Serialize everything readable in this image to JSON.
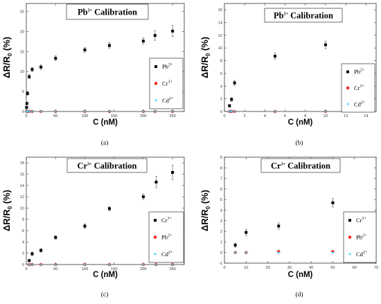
{
  "chart_data": [
    {
      "type": "scatter",
      "title": "Pb2+ Calibration",
      "title_base": "Pb",
      "title_sup": "2+",
      "title_rest": " Calibration",
      "xlabel": "C (nM)",
      "ylabel": "ΔR/R0 (%)",
      "ylabel_base": "ΔR/R",
      "ylabel_sub": "0",
      "ylabel_rest": " (%)",
      "caption": "(a)",
      "xlim": [
        0,
        270
      ],
      "ylim": [
        0,
        27
      ],
      "xticks": [
        0,
        50,
        100,
        150,
        200,
        250
      ],
      "yticks": [
        0,
        5,
        10,
        15,
        20,
        25
      ],
      "grid": false,
      "legend_placement": "right",
      "series": [
        {
          "name": "Pb2+",
          "base": "Pb",
          "sup": "2+",
          "color": "#000000",
          "marker": "square",
          "x": [
            0.5,
            1,
            2,
            5,
            10,
            25,
            50,
            100,
            142,
            200,
            220,
            250
          ],
          "y": [
            1.0,
            2.0,
            4.5,
            8.7,
            10.5,
            11.1,
            13.3,
            15.4,
            16.5,
            17.6,
            19.0,
            20.1
          ],
          "err": [
            0.2,
            0.3,
            0.4,
            0.5,
            0.5,
            0.6,
            0.6,
            0.6,
            0.7,
            0.8,
            1.2,
            1.4
          ]
        },
        {
          "name": "Cr3+",
          "base": "Cr",
          "sup": "3+",
          "color": "#ff2a1a",
          "marker": "circle",
          "x": [
            0.5,
            1,
            2,
            5,
            10,
            25,
            50,
            100,
            142,
            200,
            220,
            250
          ],
          "y": [
            0,
            0,
            0,
            0,
            0,
            0,
            0,
            0,
            0,
            0,
            0,
            0
          ]
        },
        {
          "name": "Cd2+",
          "base": "Cd",
          "sup": "2+",
          "color": "#38d5ff",
          "marker": "star",
          "x": [
            0.5,
            1,
            2,
            5,
            10,
            25,
            50,
            100,
            142,
            200,
            220,
            250
          ],
          "y": [
            0,
            0,
            0,
            0,
            0,
            0,
            0,
            0,
            0,
            0,
            0,
            0
          ]
        }
      ]
    },
    {
      "type": "scatter",
      "title": "Pb2+ Calibration",
      "title_base": "Pb",
      "title_sup": "2+",
      "title_rest": " Calibration",
      "xlabel": "C (nM)",
      "ylabel": "ΔR/R0 (%)",
      "ylabel_base": "ΔR/R",
      "ylabel_sub": "0",
      "ylabel_rest": " (%)",
      "caption": "(b)",
      "xlim": [
        0,
        15
      ],
      "ylim": [
        0,
        17
      ],
      "xticks": [
        0,
        2,
        4,
        6,
        8,
        10,
        12,
        14
      ],
      "yticks": [
        0,
        2,
        4,
        6,
        8,
        10,
        12,
        14,
        16
      ],
      "grid": false,
      "legend_placement": "right",
      "series": [
        {
          "name": "Pb2+",
          "base": "Pb",
          "sup": "2+",
          "color": "#000000",
          "marker": "square",
          "x": [
            0.5,
            0.7,
            1,
            5,
            10
          ],
          "y": [
            0.9,
            1.9,
            4.5,
            8.7,
            10.5
          ],
          "err": [
            0.2,
            0.3,
            0.4,
            0.5,
            0.6
          ]
        },
        {
          "name": "Cr3+",
          "base": "Cr",
          "sup": "3+",
          "color": "#ff2a1a",
          "marker": "circle",
          "x": [
            0.5,
            0.7,
            1,
            5,
            10
          ],
          "y": [
            0,
            0,
            0,
            0,
            0
          ]
        },
        {
          "name": "Cd2+",
          "base": "Cd",
          "sup": "2+",
          "color": "#38d5ff",
          "marker": "star",
          "x": [
            0.5,
            0.7,
            1,
            5,
            10
          ],
          "y": [
            0,
            0,
            0,
            0,
            0
          ]
        }
      ]
    },
    {
      "type": "scatter",
      "title": "Cr3+ Calibration",
      "title_base": "Cr",
      "title_sup": "3+",
      "title_rest": " Calibration",
      "xlabel": "C (nM)",
      "ylabel": "ΔR/R0 (%)",
      "ylabel_base": "ΔR/R",
      "ylabel_sub": "0",
      "ylabel_rest": " (%)",
      "caption": "(c)",
      "xlim": [
        0,
        270
      ],
      "ylim": [
        0,
        19
      ],
      "xticks": [
        0,
        50,
        100,
        150,
        200,
        250
      ],
      "yticks": [
        0,
        2,
        4,
        6,
        8,
        10,
        12,
        14,
        16,
        18
      ],
      "grid": false,
      "legend_placement": "right",
      "series": [
        {
          "name": "Cr3+",
          "base": "Cr",
          "sup": "3+",
          "color": "#000000",
          "marker": "square",
          "x": [
            5,
            10,
            25,
            50,
            100,
            142,
            200,
            222,
            250
          ],
          "y": [
            0.7,
            1.9,
            2.5,
            4.8,
            6.8,
            9.9,
            12.0,
            14.6,
            16.3
          ],
          "err": [
            0.2,
            0.3,
            0.3,
            0.3,
            0.4,
            0.4,
            0.5,
            1.0,
            1.3
          ]
        },
        {
          "name": "Pb2+",
          "base": "Pb",
          "sup": "2+",
          "color": "#ff2a1a",
          "marker": "circle",
          "x": [
            5,
            10,
            25,
            50,
            100,
            142,
            200,
            222,
            250
          ],
          "y": [
            0,
            0,
            0,
            0,
            0,
            0,
            0,
            0,
            0
          ]
        },
        {
          "name": "Cd2+",
          "base": "Cd",
          "sup": "2+",
          "color": "#38d5ff",
          "marker": "star",
          "x": [
            5,
            10,
            25,
            50,
            100,
            142,
            200,
            222,
            250
          ],
          "y": [
            0,
            0,
            0,
            0,
            0,
            0,
            0,
            0,
            0
          ]
        }
      ]
    },
    {
      "type": "scatter",
      "title": "Cr3+ Calibration",
      "title_base": "Cr",
      "title_sup": "3+",
      "title_rest": " Calibration",
      "xlabel": "C (nM)",
      "ylabel": "ΔR/R0 (%)",
      "ylabel_base": "ΔR/R",
      "ylabel_sub": "0",
      "ylabel_rest": " (%)",
      "caption": "(d)",
      "xlim": [
        0,
        70
      ],
      "ylim": [
        -1,
        9
      ],
      "xticks": [
        0,
        10,
        20,
        30,
        40,
        50,
        60,
        70
      ],
      "yticks": [
        -1,
        0,
        1,
        2,
        3,
        4,
        5,
        6,
        7,
        8,
        9
      ],
      "grid": false,
      "legend_placement": "right",
      "series": [
        {
          "name": "Cr3+",
          "base": "Cr",
          "sup": "3+",
          "color": "#000000",
          "marker": "square",
          "x": [
            5,
            10,
            25,
            50
          ],
          "y": [
            0.7,
            1.9,
            2.5,
            4.7
          ],
          "err": [
            0.2,
            0.3,
            0.3,
            0.4
          ]
        },
        {
          "name": "Pb2+",
          "base": "Pb",
          "sup": "2+",
          "color": "#ff2a1a",
          "marker": "circle",
          "x": [
            5,
            10,
            25,
            50
          ],
          "y": [
            0,
            0,
            0.1,
            0.1
          ]
        },
        {
          "name": "Cd2+",
          "base": "Cd",
          "sup": "2+",
          "color": "#38d5ff",
          "marker": "star",
          "x": [
            5,
            10,
            25,
            50
          ],
          "y": [
            0,
            0,
            0,
            0
          ]
        }
      ]
    }
  ]
}
